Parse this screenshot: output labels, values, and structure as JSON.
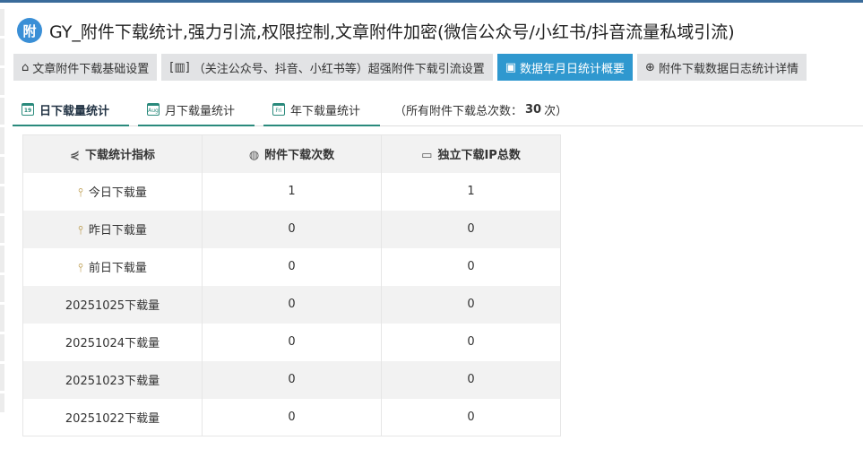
{
  "title": {
    "logo": "附",
    "text": "GY_附件下载统计,强力引流,权限控制,文章附件加密(微信公众号/小红书/抖音流量私域引流)"
  },
  "nav": [
    {
      "label": "文章附件下载基础设置",
      "icon": "home-icon"
    },
    {
      "label": "（关注公众号、抖音、小红书等）超强附件下载引流设置",
      "icon": "qrcode-icon"
    },
    {
      "label": "数据年月日统计概要",
      "icon": "calendar-icon",
      "active": true
    },
    {
      "label": "附件下载数据日志统计详情",
      "icon": "zoom-in-icon"
    }
  ],
  "tabs": [
    {
      "label": "日下载量统计",
      "icon_text": "19"
    },
    {
      "label": "月下载量统计",
      "icon_text": "Aug"
    },
    {
      "label": "年下载量统计",
      "icon_text": "Fri"
    }
  ],
  "total": {
    "prefix": "（所有附件下载总次数：",
    "value": "30",
    "suffix": "次）"
  },
  "table": {
    "headers": [
      "下载统计指标",
      "附件下载次数",
      "独立下载IP总数"
    ],
    "rows": [
      [
        "今日下载量",
        "1",
        "1"
      ],
      [
        "昨日下载量",
        "0",
        "0"
      ],
      [
        "前日下载量",
        "0",
        "0"
      ],
      [
        "20251025下载量",
        "0",
        "0"
      ],
      [
        "20251024下载量",
        "0",
        "0"
      ],
      [
        "20251023下载量",
        "0",
        "0"
      ],
      [
        "20251022下载量",
        "0",
        "0"
      ]
    ]
  },
  "colors": {
    "accent": "#2f98cf",
    "tab_underline": "#2a8a7c"
  }
}
